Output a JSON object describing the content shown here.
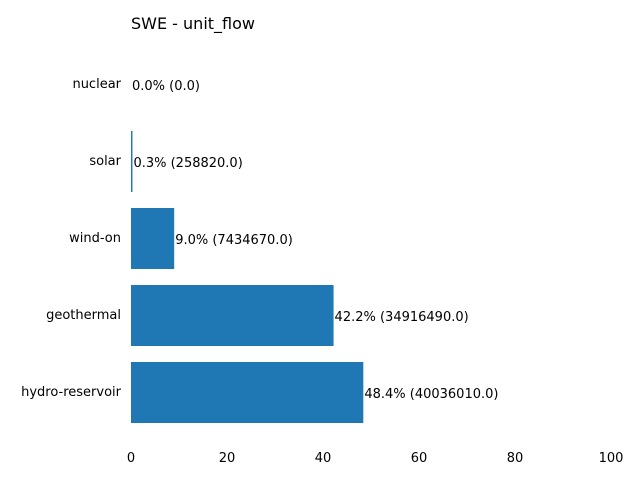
{
  "chart_data": {
    "type": "bar",
    "orientation": "horizontal",
    "title": "SWE - unit_flow",
    "categories": [
      "hydro-reservoir",
      "geothermal",
      "wind-on",
      "solar",
      "nuclear"
    ],
    "values": [
      48.4,
      42.2,
      9.0,
      0.3,
      0.0
    ],
    "data_labels": [
      "48.4% (40036010.0)",
      "42.2% (34916490.0)",
      "9.0% (7434670.0)",
      "0.3% (258820.0)",
      "0.0% (0.0)"
    ],
    "xlim": [
      0,
      100
    ],
    "xticks": [
      "0",
      "20",
      "40",
      "60",
      "80",
      "100"
    ],
    "xlabel": "",
    "ylabel": "",
    "grid": false,
    "color": "#1f77b4"
  }
}
